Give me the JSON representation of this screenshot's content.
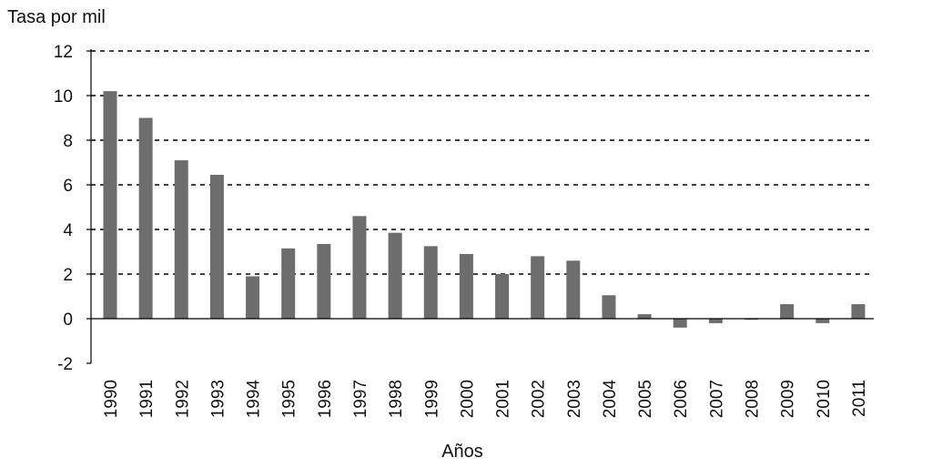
{
  "chart_data": {
    "type": "bar",
    "ylabel": "Tasa por mil",
    "xlabel": "Años",
    "categories": [
      "1990",
      "1991",
      "1992",
      "1993",
      "1994",
      "1995",
      "1996",
      "1997",
      "1998",
      "1999",
      "2000",
      "2001",
      "2002",
      "2003",
      "2004",
      "2005",
      "2006",
      "2007",
      "2008",
      "2009",
      "2010",
      "2011"
    ],
    "values": [
      10.2,
      9.0,
      7.1,
      6.45,
      1.9,
      3.15,
      3.35,
      4.6,
      3.85,
      3.25,
      2.9,
      2.0,
      2.8,
      2.6,
      1.05,
      0.2,
      -0.4,
      -0.2,
      -0.05,
      0.65,
      -0.2,
      0.65
    ],
    "ylim": [
      -2,
      12
    ],
    "yticks": [
      -2,
      0,
      2,
      4,
      6,
      8,
      10,
      12
    ],
    "ytick_labels": [
      "-2",
      "0",
      "2",
      "4",
      "6",
      "8",
      "10",
      "12"
    ],
    "grid": true,
    "bar_color": "#6d6d6d"
  }
}
